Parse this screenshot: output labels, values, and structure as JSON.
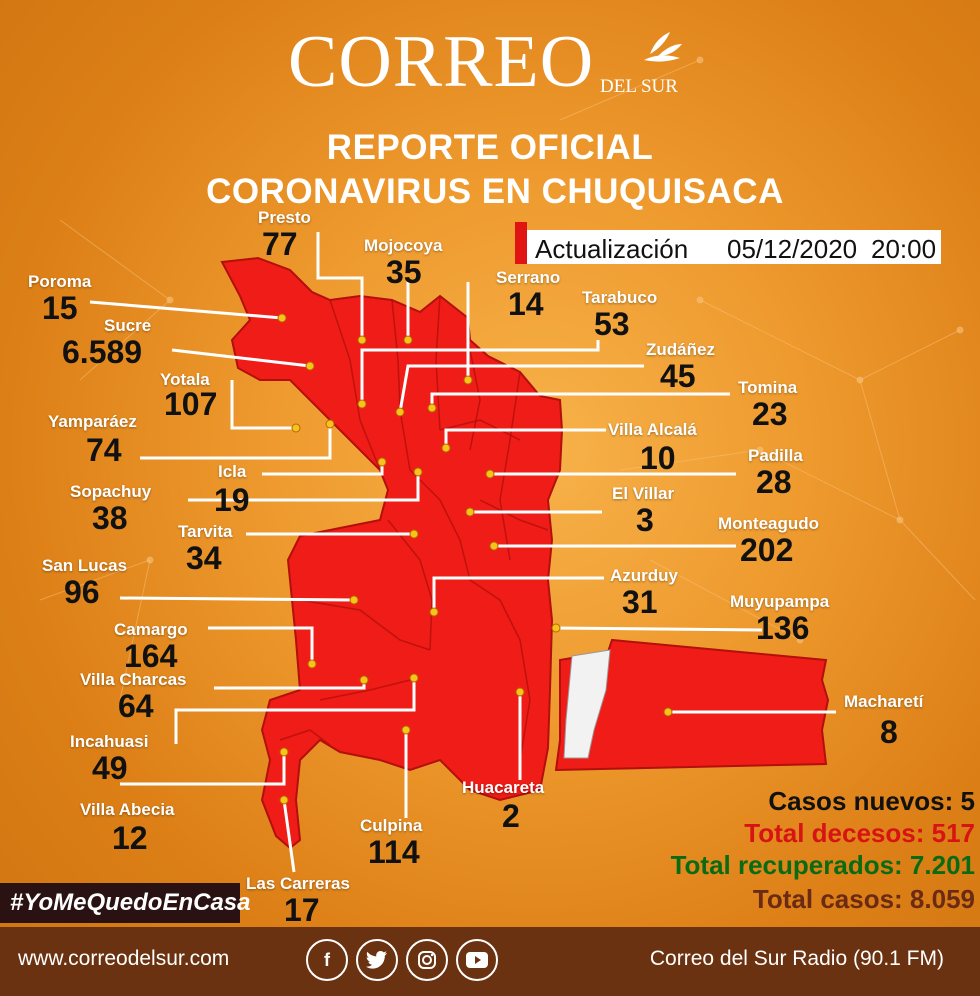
{
  "header": {
    "logo_main": "CORREO",
    "logo_sub": "DEL SUR",
    "title1": "REPORTE OFICIAL",
    "title2": "CORONAVIRUS EN CHUQUISACA"
  },
  "update": {
    "label": "Actualización",
    "date": "05/12/2020",
    "time": "20:00"
  },
  "municipalities": [
    {
      "name": "Presto",
      "cases": "77"
    },
    {
      "name": "Mojocoya",
      "cases": "35"
    },
    {
      "name": "Serrano",
      "cases": "14"
    },
    {
      "name": "Poroma",
      "cases": "15"
    },
    {
      "name": "Tarabuco",
      "cases": "53"
    },
    {
      "name": "Sucre",
      "cases": "6.589"
    },
    {
      "name": "Zudáñez",
      "cases": "45"
    },
    {
      "name": "Yotala",
      "cases": "107"
    },
    {
      "name": "Tomina",
      "cases": "23"
    },
    {
      "name": "Yamparáez",
      "cases": "74"
    },
    {
      "name": "Villa Alcalá",
      "cases": "10"
    },
    {
      "name": "Padilla",
      "cases": "28"
    },
    {
      "name": "Icla",
      "cases": "19"
    },
    {
      "name": "El Villar",
      "cases": "3"
    },
    {
      "name": "Sopachuy",
      "cases": "38"
    },
    {
      "name": "Monteagudo",
      "cases": "202"
    },
    {
      "name": "Tarvita",
      "cases": "34"
    },
    {
      "name": "San Lucas",
      "cases": "96"
    },
    {
      "name": "Azurduy",
      "cases": "31"
    },
    {
      "name": "Muyupampa",
      "cases": "136"
    },
    {
      "name": "Camargo",
      "cases": "164"
    },
    {
      "name": "Villa Charcas",
      "cases": "64"
    },
    {
      "name": "Macharetí",
      "cases": "8"
    },
    {
      "name": "Incahuasi",
      "cases": "49"
    },
    {
      "name": "Huacareta",
      "cases": "2"
    },
    {
      "name": "Villa Abecia",
      "cases": "12"
    },
    {
      "name": "Culpina",
      "cases": "114"
    },
    {
      "name": "Las Carreras",
      "cases": "17"
    }
  ],
  "stats": {
    "new_cases": "Casos nuevos: 5",
    "total_deaths": "Total decesos: 517",
    "total_recovered": "Total recuperados: 7.201",
    "total_cases": "Total casos: 8.059"
  },
  "hashtag": "#YoMeQuedoEnCasa",
  "footer": {
    "website": "www.correodelsur.com",
    "radio": "Correo del Sur Radio (90.1 FM)"
  },
  "colors": {
    "background": "#e08a1c",
    "map_fill": "#ef1c17",
    "footer": "#6a3210",
    "deaths": "#d81313",
    "recovered": "#0b6b12",
    "total": "#6b2a14"
  }
}
